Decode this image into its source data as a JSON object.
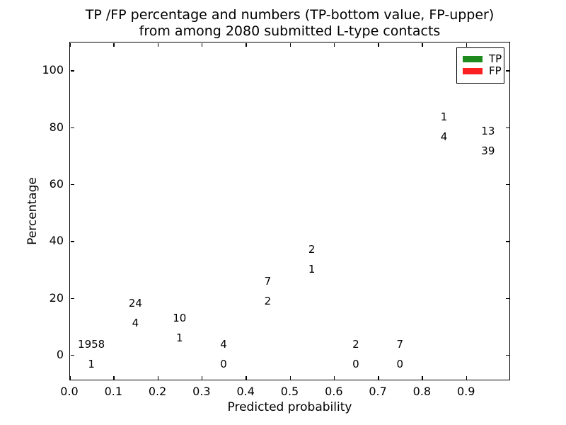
{
  "chart_data": {
    "type": "bar",
    "stacked": true,
    "title_lines": [
      "TP /FP percentage and numbers (TP-bottom value, FP-upper)",
      "from among 2080 submitted L-type contacts"
    ],
    "xlabel": "Predicted probability",
    "ylabel": "Percentage",
    "xlim": [
      0.0,
      1.0
    ],
    "ylim": [
      -9,
      110
    ],
    "grid": "dotted black, on top of bars",
    "xtick_labels": [
      "0.0",
      "0.1",
      "0.2",
      "0.3",
      "0.4",
      "0.5",
      "0.6",
      "0.7",
      "0.8",
      "0.9"
    ],
    "ytick_values": [
      0,
      20,
      40,
      60,
      80,
      100
    ],
    "colors": {
      "tp_green": "#1f8b1f",
      "fp_red": "#fb2020",
      "bar_edge": "#ffffff"
    },
    "legend": {
      "position": "upper right",
      "entries": [
        {
          "label": "TP",
          "color": "#1f8b1f"
        },
        {
          "label": "FP",
          "color": "#fb2020"
        }
      ]
    },
    "total_contacts": 2080,
    "bins": [
      {
        "range": "0.0-0.1",
        "tp": 1,
        "fp": 1958,
        "tp_pct": 0.05
      },
      {
        "range": "0.1-0.2",
        "tp": 4,
        "fp": 24,
        "tp_pct": 14.29
      },
      {
        "range": "0.2-0.3",
        "tp": 1,
        "fp": 10,
        "tp_pct": 9.09
      },
      {
        "range": "0.3-0.4",
        "tp": 0,
        "fp": 4,
        "tp_pct": 0
      },
      {
        "range": "0.4-0.5",
        "tp": 2,
        "fp": 7,
        "tp_pct": 22.22
      },
      {
        "range": "0.5-0.6",
        "tp": 1,
        "fp": 2,
        "tp_pct": 33.33
      },
      {
        "range": "0.6-0.7",
        "tp": 0,
        "fp": 2,
        "tp_pct": 0
      },
      {
        "range": "0.7-0.8",
        "tp": 0,
        "fp": 7,
        "tp_pct": 0
      },
      {
        "range": "0.8-0.9",
        "tp": 4,
        "fp": 1,
        "tp_pct": 80
      },
      {
        "range": "0.9-1.0",
        "tp": 39,
        "fp": 13,
        "tp_pct": 75
      }
    ]
  }
}
